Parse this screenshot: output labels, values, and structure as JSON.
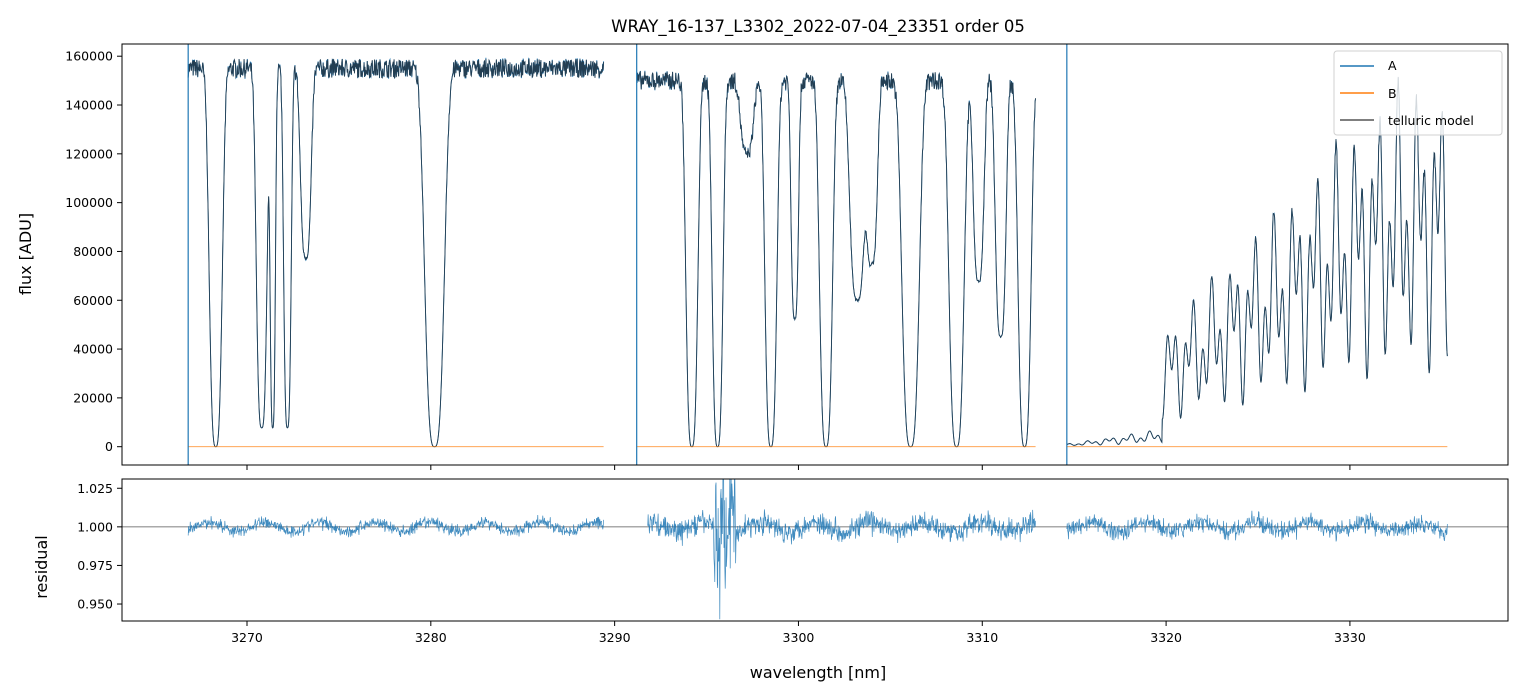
{
  "chart_data": [
    {
      "type": "line",
      "panel": "top",
      "title": "WRAY_16-137_L3302_2022-07-04_23351  order 05",
      "xlabel": "",
      "ylabel": "flux [ADU]",
      "xlim": [
        3263.2,
        3338.6
      ],
      "ylim": [
        -7500,
        165000
      ],
      "x_ticks": [
        3270,
        3280,
        3290,
        3300,
        3310,
        3320,
        3330
      ],
      "x_tick_labels_visible": false,
      "y_ticks": [
        0,
        20000,
        40000,
        60000,
        80000,
        100000,
        120000,
        140000,
        160000
      ],
      "y_tick_labels": [
        "0",
        "20000",
        "40000",
        "60000",
        "80000",
        "100000",
        "120000",
        "140000",
        "160000"
      ],
      "grid": false,
      "legend": {
        "placement": "top-right",
        "entries": [
          "A",
          "B",
          "telluric model"
        ]
      },
      "vertical_lines": [
        3266.8,
        3291.2,
        3314.6
      ],
      "segments": [
        {
          "x": [
            3266.8,
            3289.4
          ],
          "continuum": 155000
        },
        {
          "x": [
            3291.2,
            3312.9
          ],
          "continuum": 150000
        },
        {
          "x": [
            3314.6,
            3335.3
          ],
          "continuum": 150000
        }
      ],
      "absorption_bands": [
        {
          "x": 3268.3,
          "depth": 1.0,
          "width": 0.6
        },
        {
          "x": 3270.8,
          "depth": 0.95,
          "width": 0.5
        },
        {
          "x": 3271.4,
          "depth": 0.95,
          "width": 0.25
        },
        {
          "x": 3272.2,
          "depth": 0.95,
          "width": 0.35
        },
        {
          "x": 3273.2,
          "depth": 0.5,
          "width": 0.5
        },
        {
          "x": 3280.2,
          "depth": 1.0,
          "width": 0.9
        },
        {
          "x": 3294.2,
          "depth": 1.0,
          "width": 0.55
        },
        {
          "x": 3295.6,
          "depth": 1.0,
          "width": 0.5
        },
        {
          "x": 3297.2,
          "depth": 0.2,
          "width": 0.6
        },
        {
          "x": 3298.5,
          "depth": 1.0,
          "width": 0.55
        },
        {
          "x": 3299.8,
          "depth": 0.65,
          "width": 0.35
        },
        {
          "x": 3301.5,
          "depth": 1.0,
          "width": 0.6
        },
        {
          "x": 3303.2,
          "depth": 0.6,
          "width": 0.7
        },
        {
          "x": 3304.0,
          "depth": 0.5,
          "width": 0.5
        },
        {
          "x": 3306.1,
          "depth": 1.0,
          "width": 0.8
        },
        {
          "x": 3308.6,
          "depth": 1.0,
          "width": 0.7
        },
        {
          "x": 3309.8,
          "depth": 0.55,
          "width": 0.5
        },
        {
          "x": 3311.0,
          "depth": 0.7,
          "width": 0.5
        },
        {
          "x": 3312.3,
          "depth": 1.0,
          "width": 0.6
        }
      ],
      "series": [
        {
          "name": "A",
          "color": "#1f77b4",
          "kind": "spectrum"
        },
        {
          "name": "B",
          "color": "#ff7f0e",
          "kind": "constant",
          "value": 0
        },
        {
          "name": "telluric model",
          "color": "#555555",
          "kind": "model"
        }
      ]
    },
    {
      "type": "line",
      "panel": "bottom",
      "title": "",
      "xlabel": "wavelength [nm]",
      "ylabel": "residual",
      "xlim": [
        3263.2,
        3338.6
      ],
      "ylim": [
        0.939,
        1.031
      ],
      "x_ticks": [
        3270,
        3280,
        3290,
        3300,
        3310,
        3320,
        3330
      ],
      "x_tick_labels": [
        "3270",
        "3280",
        "3290",
        "3300",
        "3310",
        "3320",
        "3330"
      ],
      "y_ticks": [
        0.95,
        0.975,
        1.0,
        1.025
      ],
      "y_tick_labels": [
        "0.950",
        "0.975",
        "1.000",
        "1.025"
      ],
      "reference_line": 1.0,
      "grid": false,
      "series": [
        {
          "name": "residual",
          "color": "#1f77b4",
          "noise": 0.004,
          "segments": [
            [
              3266.8,
              3289.4
            ],
            [
              3291.8,
              3312.9
            ],
            [
              3314.6,
              3335.3
            ]
          ]
        }
      ]
    }
  ]
}
